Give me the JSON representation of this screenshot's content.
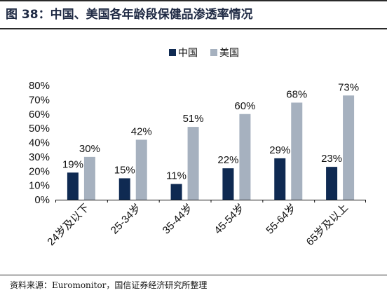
{
  "title": "图 38：中国、美国各年龄段保健品渗透率情况",
  "source": "资料来源：Euromonitor，国信证券经济研究所整理",
  "colors": {
    "china": "#0f2a52",
    "usa": "#a6b1bf",
    "text": "#111111",
    "axis": "#111111"
  },
  "chart_data": {
    "type": "bar",
    "categories": [
      "24岁及以下",
      "25-34岁",
      "35-44岁",
      "45-54岁",
      "55-64岁",
      "65岁及以上"
    ],
    "series": [
      {
        "name": "中国",
        "values": [
          19,
          15,
          11,
          22,
          29,
          23
        ],
        "labels": [
          "19%",
          "15%",
          "11%",
          "22%",
          "29%",
          "23%"
        ]
      },
      {
        "name": "美国",
        "values": [
          30,
          42,
          51,
          60,
          68,
          73
        ],
        "labels": [
          "30%",
          "42%",
          "51%",
          "60%",
          "68%",
          "73%"
        ]
      }
    ],
    "ylim": [
      0,
      80
    ],
    "yticks": [
      "0%",
      "10%",
      "20%",
      "30%",
      "40%",
      "50%",
      "60%",
      "70%",
      "80%"
    ],
    "legend_position": "top-center",
    "grid": false,
    "xlabel": "",
    "ylabel": ""
  }
}
